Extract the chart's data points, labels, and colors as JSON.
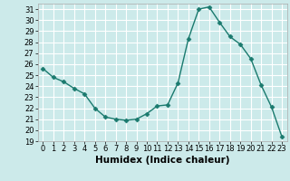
{
  "x": [
    0,
    1,
    2,
    3,
    4,
    5,
    6,
    7,
    8,
    9,
    10,
    11,
    12,
    13,
    14,
    15,
    16,
    17,
    18,
    19,
    20,
    21,
    22,
    23
  ],
  "y": [
    25.6,
    24.8,
    24.4,
    23.8,
    23.3,
    22.0,
    21.2,
    21.0,
    20.9,
    21.0,
    21.5,
    22.2,
    22.3,
    24.3,
    28.3,
    31.0,
    31.2,
    29.8,
    28.5,
    27.8,
    26.5,
    24.1,
    22.1,
    19.4
  ],
  "line_color": "#1a7a6e",
  "marker": "D",
  "markersize": 2.5,
  "linewidth": 1.0,
  "bg_color": "#cceaea",
  "grid_color": "#ffffff",
  "xlabel": "Humidex (Indice chaleur)",
  "xlim": [
    -0.5,
    23.5
  ],
  "ylim": [
    19,
    31.5
  ],
  "yticks": [
    19,
    20,
    21,
    22,
    23,
    24,
    25,
    26,
    27,
    28,
    29,
    30,
    31
  ],
  "xticks": [
    0,
    1,
    2,
    3,
    4,
    5,
    6,
    7,
    8,
    9,
    10,
    11,
    12,
    13,
    14,
    15,
    16,
    17,
    18,
    19,
    20,
    21,
    22,
    23
  ],
  "tick_fontsize": 6,
  "xlabel_fontsize": 7.5,
  "tick_color": "#000000",
  "spine_color": "#aaaaaa"
}
